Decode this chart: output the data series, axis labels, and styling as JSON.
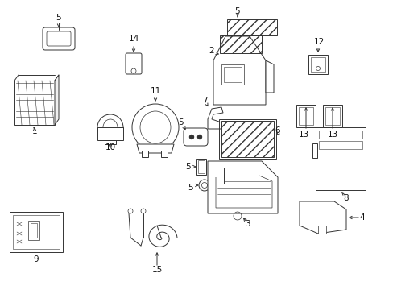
{
  "bg_color": "#ffffff",
  "line_color": "#333333",
  "text_color": "#111111",
  "fig_width": 4.89,
  "fig_height": 3.6,
  "dpi": 100,
  "lw": 0.7,
  "fs": 7.5
}
